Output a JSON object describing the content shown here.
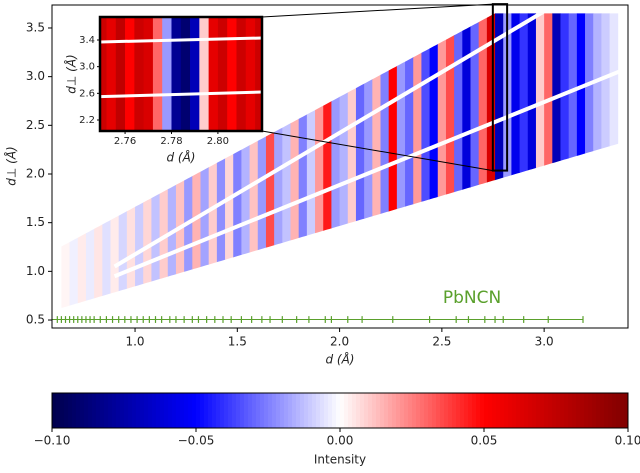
{
  "chart_data": {
    "type": "heatmap",
    "xlabel": "d (Å)",
    "ylabel": "d⊥ (Å)",
    "xlim": [
      0.594,
      3.41
    ],
    "ylim": [
      0.418,
      3.736
    ],
    "xticks": [
      {
        "value": 1,
        "label": "1.0"
      },
      {
        "value": 1.5,
        "label": "1.5"
      },
      {
        "value": 2,
        "label": "2.0"
      },
      {
        "value": 2.5,
        "label": "2.5"
      },
      {
        "value": 3,
        "label": "3.0"
      }
    ],
    "yticks": [
      0.5,
      {
        "value": 1,
        "label": "1.0"
      },
      1.5,
      {
        "value": 2,
        "label": "2.0"
      },
      2.5,
      {
        "value": 3,
        "label": "3.0"
      },
      3.5
    ],
    "stripes": {
      "d": [
        0.66,
        0.7,
        0.74,
        0.78,
        0.82,
        0.86,
        0.9,
        0.94,
        0.98,
        1.02,
        1.06,
        1.1,
        1.14,
        1.18,
        1.22,
        1.26,
        1.3,
        1.34,
        1.38,
        1.42,
        1.46,
        1.5,
        1.54,
        1.58,
        1.62,
        1.66,
        1.7,
        1.74,
        1.78,
        1.82,
        1.86,
        1.9,
        1.94,
        1.98,
        2.02,
        2.06,
        2.1,
        2.14,
        2.18,
        2.22,
        2.26,
        2.3,
        2.34,
        2.38,
        2.42,
        2.46,
        2.5,
        2.54,
        2.58,
        2.62,
        2.66,
        2.7,
        2.74,
        2.78,
        2.82,
        2.86,
        2.9,
        2.94,
        2.98,
        3.02,
        3.06,
        3.1,
        3.14,
        3.18,
        3.22,
        3.26,
        3.3,
        3.34
      ],
      "values": [
        0.002,
        -0.003,
        0.004,
        -0.004,
        0.005,
        -0.006,
        0.004,
        -0.008,
        0.006,
        -0.01,
        0.008,
        -0.012,
        0.01,
        -0.015,
        0.012,
        -0.02,
        0.015,
        -0.018,
        0.01,
        -0.022,
        0.008,
        -0.025,
        -0.015,
        0.012,
        -0.02,
        0.035,
        -0.018,
        -0.012,
        0.015,
        -0.025,
        -0.01,
        0.02,
        0.045,
        -0.02,
        -0.015,
        0.01,
        -0.03,
        -0.02,
        0.015,
        -0.025,
        0.05,
        -0.02,
        -0.03,
        0.02,
        -0.035,
        -0.05,
        0.02,
        0.035,
        -0.03,
        -0.06,
        -0.03,
        0.03,
        0.065,
        -0.07,
        -0.02,
        -0.055,
        -0.04,
        -0.06,
        0.01,
        0.03,
        -0.07,
        -0.04,
        -0.03,
        -0.05,
        -0.025,
        -0.015,
        -0.01,
        -0.005
      ]
    },
    "phase": {
      "label": "PbNCN",
      "color": "#5aa02c",
      "reflections": [
        0.62,
        0.64,
        0.66,
        0.68,
        0.7,
        0.72,
        0.74,
        0.76,
        0.78,
        0.8,
        0.83,
        0.86,
        0.89,
        0.92,
        0.95,
        0.98,
        1.01,
        1.04,
        1.07,
        1.1,
        1.13,
        1.17,
        1.2,
        1.24,
        1.28,
        1.31,
        1.35,
        1.39,
        1.43,
        1.47,
        1.52,
        1.57,
        1.62,
        1.66,
        1.72,
        1.79,
        1.85,
        1.93,
        1.96,
        2.04,
        2.11,
        2.26,
        2.44,
        2.57,
        2.63,
        2.71,
        2.76,
        2.8,
        2.9,
        3.02,
        3.19
      ]
    },
    "colorbar": {
      "label": "Intensity",
      "colormap": "seismic",
      "clim": [
        -0.1,
        0.1
      ],
      "ticks": [
        {
          "value": -0.1,
          "label": "−0.10"
        },
        {
          "value": -0.05,
          "label": "−0.05"
        },
        {
          "value": 0,
          "label": "0.00"
        },
        {
          "value": 0.05,
          "label": "0.05"
        },
        {
          "value": 0.1,
          "label": "0.10"
        }
      ]
    },
    "inset": {
      "xlabel": "d (Å)",
      "ylabel": "d⊥ (Å)",
      "xlim": [
        2.7492,
        2.819
      ],
      "ylim": [
        2.035,
        3.745
      ],
      "xticks": [
        2.76,
        2.78,
        {
          "value": 2.8,
          "label": "2.80"
        }
      ],
      "yticks": [
        2.2,
        2.6,
        {
          "value": 3,
          "label": "3.0"
        },
        3.4
      ],
      "columns": {
        "d": [
          2.75,
          2.754,
          2.758,
          2.762,
          2.766,
          2.77,
          2.774,
          2.778,
          2.782,
          2.786,
          2.79,
          2.794,
          2.798,
          2.802,
          2.806,
          2.81,
          2.814,
          2.818
        ],
        "values": [
          0.07,
          0.06,
          0.075,
          0.05,
          0.07,
          0.065,
          0.03,
          -0.02,
          -0.08,
          -0.09,
          -0.07,
          0.01,
          0.06,
          0.07,
          0.05,
          0.07,
          0.06,
          0.07
        ]
      }
    }
  }
}
